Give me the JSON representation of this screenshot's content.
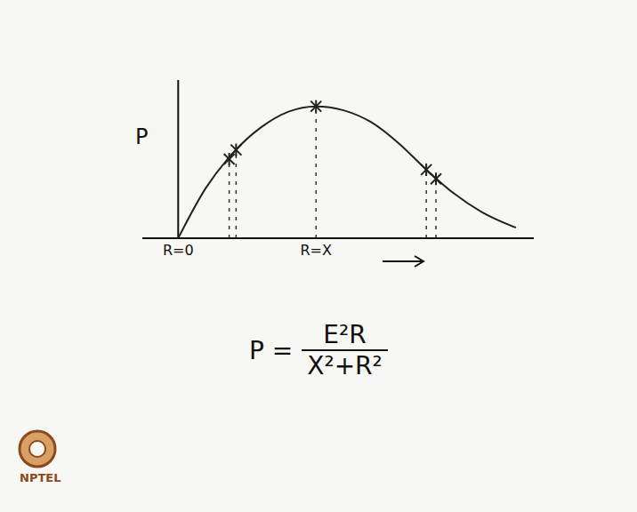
{
  "chart_data": {
    "type": "line",
    "y_label": "P",
    "x": [
      0,
      0.2,
      0.4,
      0.6,
      0.8,
      1.0,
      1.2,
      1.4,
      1.6,
      1.8,
      2.0,
      2.2,
      2.45
    ],
    "values": [
      0,
      0.38,
      0.65,
      0.84,
      0.96,
      1.0,
      0.97,
      0.88,
      0.72,
      0.52,
      0.34,
      0.2,
      0.08
    ],
    "color": "#222222",
    "xlim": [
      -0.26,
      2.58
    ],
    "ylim": [
      0,
      1.2
    ],
    "xticks": [
      {
        "value": 0,
        "label": "R=0"
      },
      {
        "value": 1,
        "label": "R=X"
      }
    ],
    "tick_labels": "x",
    "grid": false,
    "marked_points": {
      "x": [
        0.37,
        0.42,
        1.0,
        1.8,
        1.87
      ],
      "values": [
        0.6,
        0.67,
        1.0,
        0.52,
        0.45
      ],
      "marker": "x",
      "line_style": "dashed"
    }
  },
  "formula": {
    "left": "P =",
    "numerator": "E²R",
    "denominator": "X²+R²"
  },
  "logo": "NPTEL"
}
